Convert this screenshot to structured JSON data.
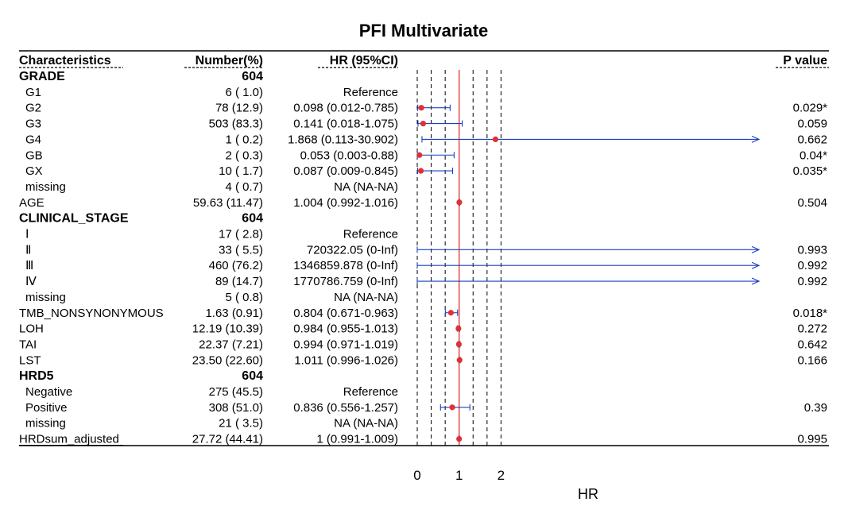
{
  "chart_data": {
    "type": "forest",
    "title": "PFI Multivariate",
    "columns": {
      "characteristics": "Characteristics",
      "number": "Number(%)",
      "hr": "HR (95%CI)",
      "pvalue": "P value"
    },
    "xlabel": "HR",
    "x_ticks": [
      0,
      1,
      2
    ],
    "xlim": [
      0,
      2
    ],
    "reference_line": 1,
    "dashed_gridlines": [
      0,
      0.333,
      0.667,
      1.333,
      1.667,
      2
    ],
    "colors": {
      "point": "#e03131",
      "ci": "#1a3fbf",
      "reference_line": "#e03131",
      "grid": "#000000"
    },
    "rows": [
      {
        "label": "GRADE",
        "header": true,
        "number": "604",
        "hr_text": "",
        "p": ""
      },
      {
        "label": "G1",
        "indent": true,
        "number": "6 ( 1.0)",
        "hr_text": "Reference",
        "p": ""
      },
      {
        "label": "G2",
        "indent": true,
        "number": "78 (12.9)",
        "hr_text": "0.098 (0.012-0.785)",
        "p": "0.029*",
        "hr": 0.098,
        "lo": 0.012,
        "hi": 0.785
      },
      {
        "label": "G3",
        "indent": true,
        "number": "503 (83.3)",
        "hr_text": "0.141 (0.018-1.075)",
        "p": "0.059",
        "hr": 0.141,
        "lo": 0.018,
        "hi": 1.075
      },
      {
        "label": "G4",
        "indent": true,
        "number": "1 ( 0.2)",
        "hr_text": "1.868 (0.113-30.902)",
        "p": "0.662",
        "hr": 1.868,
        "lo": 0.113,
        "hi": 30.902
      },
      {
        "label": "GB",
        "indent": true,
        "number": "2 ( 0.3)",
        "hr_text": "0.053 (0.003-0.88)",
        "p": "0.04*",
        "hr": 0.053,
        "lo": 0.003,
        "hi": 0.88
      },
      {
        "label": "GX",
        "indent": true,
        "number": "10 ( 1.7)",
        "hr_text": "0.087 (0.009-0.845)",
        "p": "0.035*",
        "hr": 0.087,
        "lo": 0.009,
        "hi": 0.845
      },
      {
        "label": "missing",
        "indent": true,
        "number": "4 ( 0.7)",
        "hr_text": "NA (NA-NA)",
        "p": ""
      },
      {
        "label": "AGE",
        "number": "59.63 (11.47)",
        "hr_text": "1.004 (0.992-1.016)",
        "p": "0.504",
        "hr": 1.004,
        "lo": 0.992,
        "hi": 1.016
      },
      {
        "label": "CLINICAL_STAGE",
        "header": true,
        "number": "604",
        "hr_text": "",
        "p": ""
      },
      {
        "label": "Ⅰ",
        "indent": true,
        "number": "17 ( 2.8)",
        "hr_text": "Reference",
        "p": ""
      },
      {
        "label": "Ⅱ",
        "indent": true,
        "number": "33 ( 5.5)",
        "hr_text": "720322.05 (0-Inf)",
        "p": "0.993",
        "hr": 720322.05,
        "lo": 0,
        "hi": "Inf"
      },
      {
        "label": "Ⅲ",
        "indent": true,
        "number": "460 (76.2)",
        "hr_text": "1346859.878 (0-Inf)",
        "p": "0.992",
        "hr": 1346859.878,
        "lo": 0,
        "hi": "Inf"
      },
      {
        "label": "Ⅳ",
        "indent": true,
        "number": "89 (14.7)",
        "hr_text": "1770786.759 (0-Inf)",
        "p": "0.992",
        "hr": 1770786.759,
        "lo": 0,
        "hi": "Inf"
      },
      {
        "label": "missing",
        "indent": true,
        "number": "5 ( 0.8)",
        "hr_text": "NA (NA-NA)",
        "p": ""
      },
      {
        "label": "TMB_NONSYNONYMOUS",
        "number": "1.63 (0.91)",
        "hr_text": "0.804 (0.671-0.963)",
        "p": "0.018*",
        "hr": 0.804,
        "lo": 0.671,
        "hi": 0.963
      },
      {
        "label": "LOH",
        "number": "12.19 (10.39)",
        "hr_text": "0.984 (0.955-1.013)",
        "p": "0.272",
        "hr": 0.984,
        "lo": 0.955,
        "hi": 1.013
      },
      {
        "label": "TAI",
        "number": "22.37 (7.21)",
        "hr_text": "0.994 (0.971-1.019)",
        "p": "0.642",
        "hr": 0.994,
        "lo": 0.971,
        "hi": 1.019
      },
      {
        "label": "LST",
        "number": "23.50 (22.60)",
        "hr_text": "1.011 (0.996-1.026)",
        "p": "0.166",
        "hr": 1.011,
        "lo": 0.996,
        "hi": 1.026
      },
      {
        "label": "HRD5",
        "header": true,
        "number": "604",
        "hr_text": "",
        "p": ""
      },
      {
        "label": "Negative",
        "indent": true,
        "number": "275 (45.5)",
        "hr_text": "Reference",
        "p": ""
      },
      {
        "label": "Positive",
        "indent": true,
        "number": "308 (51.0)",
        "hr_text": "0.836 (0.556-1.257)",
        "p": "0.39",
        "hr": 0.836,
        "lo": 0.556,
        "hi": 1.257
      },
      {
        "label": "missing",
        "indent": true,
        "number": "21 ( 3.5)",
        "hr_text": "NA (NA-NA)",
        "p": ""
      },
      {
        "label": "HRDsum_adjusted",
        "number": "27.72 (44.41)",
        "hr_text": "1 (0.991-1.009)",
        "p": "0.995",
        "hr": 1,
        "lo": 0.991,
        "hi": 1.009
      }
    ]
  }
}
